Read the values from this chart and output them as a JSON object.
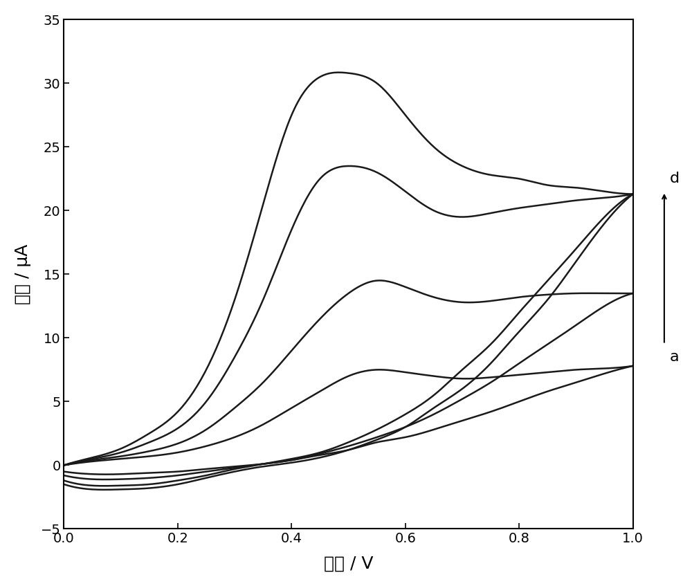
{
  "title": "",
  "xlabel": "电位 / V",
  "ylabel": "电流 / μA",
  "xlim": [
    0.0,
    1.0
  ],
  "ylim": [
    -5,
    35
  ],
  "xticks": [
    0.0,
    0.2,
    0.4,
    0.6,
    0.8,
    1.0
  ],
  "yticks": [
    -5,
    0,
    5,
    10,
    15,
    20,
    25,
    30,
    35
  ],
  "background_color": "#ffffff",
  "line_color": "#1a1a1a",
  "curves": {
    "a": {
      "forward_v": [
        0.0,
        0.05,
        0.1,
        0.15,
        0.2,
        0.25,
        0.3,
        0.35,
        0.4,
        0.45,
        0.5,
        0.55,
        0.6,
        0.65,
        0.7,
        0.75,
        0.8,
        0.85,
        0.9,
        0.95,
        1.0
      ],
      "forward_i": [
        0.0,
        0.3,
        0.5,
        0.7,
        1.0,
        1.5,
        2.2,
        3.2,
        4.5,
        5.8,
        7.0,
        7.5,
        7.3,
        7.0,
        6.8,
        6.9,
        7.1,
        7.3,
        7.5,
        7.6,
        7.8
      ],
      "backward_v": [
        1.0,
        0.95,
        0.9,
        0.85,
        0.8,
        0.75,
        0.7,
        0.65,
        0.6,
        0.55,
        0.5,
        0.45,
        0.4,
        0.35,
        0.3,
        0.25,
        0.2,
        0.15,
        0.1,
        0.05,
        0.0
      ],
      "backward_i": [
        7.8,
        7.2,
        6.5,
        5.8,
        5.0,
        4.2,
        3.5,
        2.8,
        2.2,
        1.8,
        1.2,
        0.8,
        0.4,
        0.1,
        -0.1,
        -0.3,
        -0.5,
        -0.6,
        -0.7,
        -0.7,
        -0.5
      ]
    },
    "b": {
      "forward_v": [
        0.0,
        0.05,
        0.1,
        0.15,
        0.2,
        0.25,
        0.3,
        0.35,
        0.4,
        0.45,
        0.5,
        0.55,
        0.6,
        0.65,
        0.7,
        0.75,
        0.8,
        0.85,
        0.9,
        0.95,
        1.0
      ],
      "forward_i": [
        0.0,
        0.4,
        0.7,
        1.1,
        1.7,
        2.8,
        4.5,
        6.5,
        9.0,
        11.5,
        13.5,
        14.5,
        14.0,
        13.2,
        12.8,
        12.9,
        13.2,
        13.4,
        13.5,
        13.5,
        13.5
      ],
      "backward_v": [
        1.0,
        0.95,
        0.9,
        0.85,
        0.8,
        0.75,
        0.7,
        0.65,
        0.6,
        0.55,
        0.5,
        0.45,
        0.4,
        0.35,
        0.3,
        0.25,
        0.2,
        0.15,
        0.1,
        0.05,
        0.0
      ],
      "backward_i": [
        13.5,
        12.5,
        11.0,
        9.5,
        8.0,
        6.5,
        5.2,
        4.0,
        3.0,
        2.2,
        1.5,
        0.9,
        0.4,
        0.1,
        -0.2,
        -0.5,
        -0.8,
        -1.0,
        -1.1,
        -1.1,
        -0.8
      ]
    },
    "c": {
      "forward_v": [
        0.0,
        0.05,
        0.1,
        0.15,
        0.2,
        0.25,
        0.3,
        0.35,
        0.4,
        0.45,
        0.5,
        0.55,
        0.6,
        0.65,
        0.7,
        0.75,
        0.8,
        0.85,
        0.9,
        0.95,
        1.0
      ],
      "forward_i": [
        0.0,
        0.5,
        1.0,
        1.8,
        2.9,
        5.0,
        8.5,
        13.0,
        18.5,
        22.5,
        23.5,
        23.0,
        21.5,
        20.0,
        19.5,
        19.8,
        20.2,
        20.5,
        20.8,
        21.0,
        21.3
      ],
      "backward_v": [
        1.0,
        0.95,
        0.9,
        0.85,
        0.8,
        0.75,
        0.7,
        0.65,
        0.6,
        0.55,
        0.5,
        0.45,
        0.4,
        0.35,
        0.3,
        0.25,
        0.2,
        0.15,
        0.1,
        0.05,
        0.0
      ],
      "backward_i": [
        21.3,
        19.5,
        17.0,
        14.5,
        12.0,
        9.5,
        7.5,
        5.5,
        4.0,
        2.8,
        1.8,
        1.0,
        0.5,
        0.1,
        -0.3,
        -0.8,
        -1.2,
        -1.5,
        -1.6,
        -1.6,
        -1.2
      ]
    },
    "d": {
      "forward_v": [
        0.0,
        0.05,
        0.1,
        0.15,
        0.2,
        0.25,
        0.3,
        0.35,
        0.4,
        0.45,
        0.5,
        0.55,
        0.6,
        0.65,
        0.7,
        0.75,
        0.8,
        0.85,
        0.9,
        0.95,
        1.0
      ],
      "forward_i": [
        0.0,
        0.6,
        1.3,
        2.5,
        4.2,
        7.5,
        13.0,
        20.5,
        27.5,
        30.5,
        30.8,
        30.0,
        27.5,
        25.0,
        23.5,
        22.8,
        22.5,
        22.0,
        21.8,
        21.5,
        21.3
      ],
      "backward_v": [
        1.0,
        0.95,
        0.9,
        0.85,
        0.8,
        0.75,
        0.7,
        0.65,
        0.6,
        0.55,
        0.5,
        0.45,
        0.4,
        0.35,
        0.3,
        0.25,
        0.2,
        0.15,
        0.1,
        0.05,
        0.0
      ],
      "backward_i": [
        21.3,
        19.0,
        16.0,
        13.0,
        10.5,
        8.0,
        6.0,
        4.5,
        3.0,
        2.0,
        1.2,
        0.6,
        0.2,
        -0.1,
        -0.5,
        -1.0,
        -1.5,
        -1.8,
        -1.9,
        -1.9,
        -1.5
      ]
    }
  }
}
